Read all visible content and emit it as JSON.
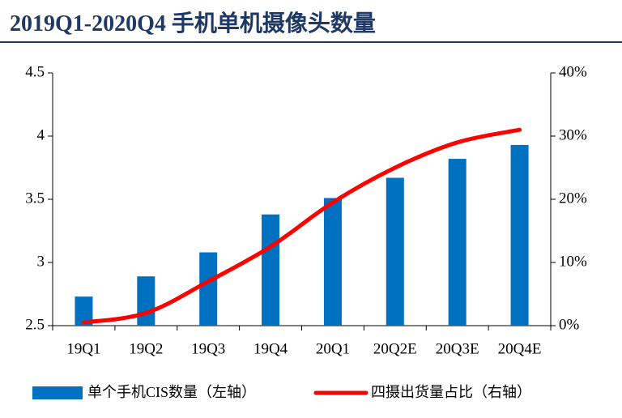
{
  "chart_data": {
    "type": "bar-line",
    "title": "2019Q1-2020Q4 手机单机摄像头数量",
    "categories": [
      "19Q1",
      "19Q2",
      "19Q3",
      "19Q4",
      "20Q1",
      "20Q2E",
      "20Q3E",
      "20Q4E"
    ],
    "series": [
      {
        "name": "单个手机CIS数量（左轴）",
        "type": "bar",
        "color": "#0070c0",
        "values": [
          2.73,
          2.89,
          3.08,
          3.38,
          3.51,
          3.67,
          3.82,
          3.93
        ]
      },
      {
        "name": "四摄出货量占比（右轴）",
        "type": "line",
        "axis": "y2",
        "color": "#ff0000",
        "values": [
          0.5,
          2,
          7,
          12.5,
          19.5,
          25,
          29,
          31
        ]
      }
    ],
    "ylim": [
      2.5,
      4.5
    ],
    "yticks": [
      2.5,
      3,
      3.5,
      4,
      4.5
    ],
    "y2lim": [
      0,
      40
    ],
    "y2ticks": [
      {
        "value": 0,
        "label": "0%"
      },
      {
        "value": 10,
        "label": "10%"
      },
      {
        "value": 20,
        "label": "20%"
      },
      {
        "value": 30,
        "label": "30%"
      },
      {
        "value": 40,
        "label": "40%"
      }
    ]
  }
}
